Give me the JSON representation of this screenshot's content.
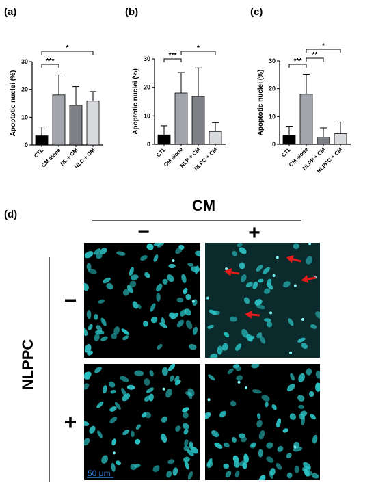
{
  "chart_data": [
    {
      "type": "bar",
      "panel": "(a)",
      "ylabel": "Apoptotic nuclei (%)",
      "ylim": [
        0,
        30
      ],
      "yticks": [
        0,
        10,
        20,
        30
      ],
      "categories": [
        "CTL",
        "CM alone",
        "NL + CM",
        "NLC + CM"
      ],
      "values": [
        3.3,
        18,
        14.3,
        15.8
      ],
      "errors": [
        3.2,
        7.2,
        6.7,
        3.4
      ],
      "colors": [
        "#000000",
        "#a4a6ad",
        "#7f8085",
        "#d8d9dc"
      ],
      "significance": [
        {
          "from": 0,
          "to": 1,
          "label": "***"
        },
        {
          "from": 0,
          "to": 3,
          "label": "*"
        }
      ]
    },
    {
      "type": "bar",
      "panel": "(b)",
      "ylabel": "Apoptotic nuclei (%)",
      "ylim": [
        0,
        30
      ],
      "yticks": [
        0,
        10,
        20,
        30
      ],
      "categories": [
        "CTL",
        "CM alone",
        "NLP + CM",
        "NLPC + CM"
      ],
      "values": [
        3.3,
        18,
        16.8,
        4.5
      ],
      "errors": [
        3.2,
        7.2,
        10,
        3.1
      ],
      "colors": [
        "#000000",
        "#a4a6ad",
        "#7f8085",
        "#d8d9dc"
      ],
      "significance": [
        {
          "from": 0,
          "to": 1,
          "label": "***"
        },
        {
          "from": 1,
          "to": 3,
          "label": "*"
        }
      ]
    },
    {
      "type": "bar",
      "panel": "(c)",
      "ylabel": "Apoptotic nuclei (%)",
      "ylim": [
        0,
        30
      ],
      "yticks": [
        0,
        10,
        20,
        30
      ],
      "categories": [
        "CTL",
        "CM alone",
        "NLPP + CM",
        "NLPPC + CM"
      ],
      "values": [
        3.3,
        18,
        2.6,
        3.8
      ],
      "errors": [
        3.2,
        7.2,
        3.3,
        4.2
      ],
      "colors": [
        "#000000",
        "#a4a6ad",
        "#7f8085",
        "#d8d9dc"
      ],
      "significance": [
        {
          "from": 0,
          "to": 1,
          "label": "***"
        },
        {
          "from": 1,
          "to": 2,
          "label": "**"
        },
        {
          "from": 1,
          "to": 3,
          "label": "*"
        }
      ]
    }
  ],
  "micrograph_panel": {
    "label": "(d)",
    "column_factor": "CM",
    "column_levels": [
      "−",
      "+"
    ],
    "row_factor": "NLPPC",
    "row_levels": [
      "−",
      "+"
    ],
    "scale_bar": "50 μm",
    "nucleus_color": "#2bc2c4"
  }
}
